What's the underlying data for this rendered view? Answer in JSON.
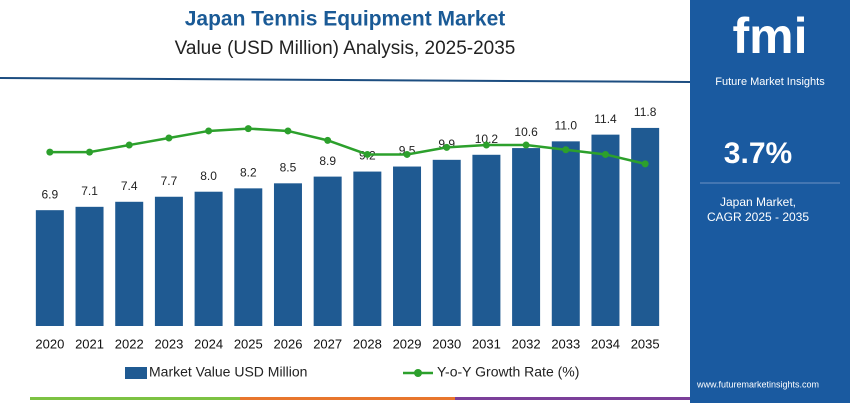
{
  "chart_data": {
    "type": "bar",
    "title": "Japan Tennis Equipment Market",
    "subtitle": "Value (USD Million) Analysis, 2025-2035",
    "categories": [
      "2020",
      "2021",
      "2022",
      "2023",
      "2024",
      "2025",
      "2026",
      "2027",
      "2028",
      "2029",
      "2030",
      "2031",
      "2032",
      "2033",
      "2034",
      "2035"
    ],
    "series": [
      {
        "name": "Market Value USD Million",
        "color": "#1f5a92",
        "type": "bar",
        "values": [
          6.9,
          7.1,
          7.4,
          7.7,
          8.0,
          8.2,
          8.5,
          8.9,
          9.2,
          9.5,
          9.9,
          10.2,
          10.6,
          11.0,
          11.4,
          11.8
        ],
        "value_labels": [
          "6.9",
          "7.1",
          "7.4",
          "7.7",
          "8.0",
          "8.2",
          "8.5",
          "8.9",
          "9.2",
          "9.5",
          "9.9",
          "10.2",
          "10.6",
          "11.0",
          "11.4",
          "11.8"
        ]
      },
      {
        "name": "Y-o-Y Growth Rate (%)",
        "color": "#2ca02c",
        "type": "line",
        "axis": "y2",
        "values": [
          7.4,
          7.4,
          7.7,
          8.0,
          8.3,
          8.4,
          8.3,
          7.9,
          7.3,
          7.3,
          7.6,
          7.7,
          7.7,
          7.5,
          7.3,
          6.9
        ]
      }
    ],
    "ylim": [
      0,
      14
    ],
    "y2lim": [
      0,
      10
    ]
  },
  "panel": {
    "logo": "fmi",
    "brand": "Future Market Insights",
    "cagr": "3.7%",
    "market": "Japan Market,",
    "period": "CAGR 2025 - 2035",
    "url": "www.futuremarketinsights.com"
  }
}
